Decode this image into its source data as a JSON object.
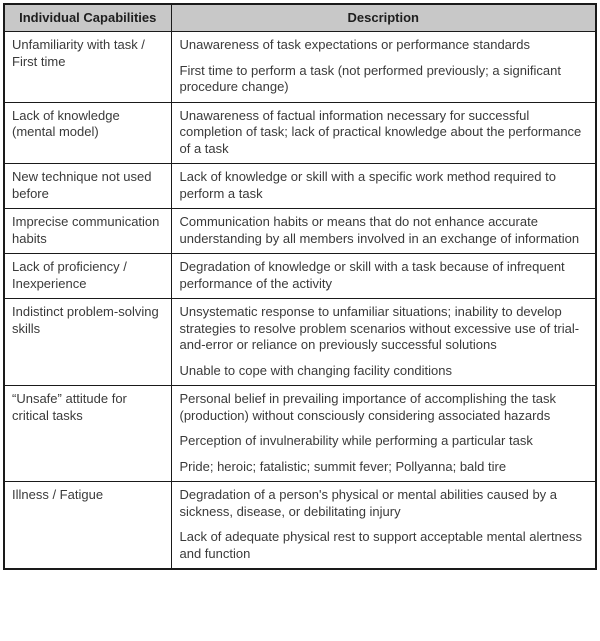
{
  "table": {
    "headers": {
      "capability": "Individual Capabilities",
      "description": "Description"
    },
    "rows": [
      {
        "capability": "Unfamiliarity with task / First time",
        "descriptions": [
          "Unawareness of task expectations or performance standards",
          "First time to perform a task (not performed previously; a significant procedure change)"
        ]
      },
      {
        "capability": "Lack of knowledge (mental model)",
        "descriptions": [
          "Unawareness of factual information necessary for successful completion of task; lack of practical knowledge about the performance of a task"
        ]
      },
      {
        "capability": "New technique not used before",
        "descriptions": [
          "Lack of knowledge or skill with a specific work method required to perform a task"
        ]
      },
      {
        "capability": "Imprecise communication habits",
        "descriptions": [
          "Communication habits or means that do not enhance accurate understanding by all members involved in an exchange of information"
        ]
      },
      {
        "capability": "Lack of proficiency / Inexperience",
        "descriptions": [
          "Degradation of knowledge or skill with a task because of infrequent performance of the activity"
        ]
      },
      {
        "capability": "Indistinct problem-solving skills",
        "descriptions": [
          "Unsystematic response to unfamiliar situations; inability to develop strategies to resolve problem scenarios without excessive use of trial-and-error or reliance on previously successful solutions",
          "Unable to cope with changing facility conditions"
        ]
      },
      {
        "capability": "“Unsafe” attitude for critical tasks",
        "descriptions": [
          "Personal belief in prevailing importance of accomplishing the task (production) without consciously considering associated hazards",
          "Perception of invulnerability while performing a particular task",
          "Pride; heroic; fatalistic; summit fever; Pollyanna; bald tire"
        ]
      },
      {
        "capability": "Illness / Fatigue",
        "descriptions": [
          "Degradation of a person's physical or mental abilities caused by a sickness, disease, or debilitating injury",
          "Lack of adequate physical rest to support acceptable mental alertness and function"
        ]
      }
    ],
    "colors": {
      "header_background": "#c8c8c8",
      "border": "#1a1a1a",
      "body_text": "#3a3a3a",
      "header_text": "#1e1e1e"
    }
  }
}
